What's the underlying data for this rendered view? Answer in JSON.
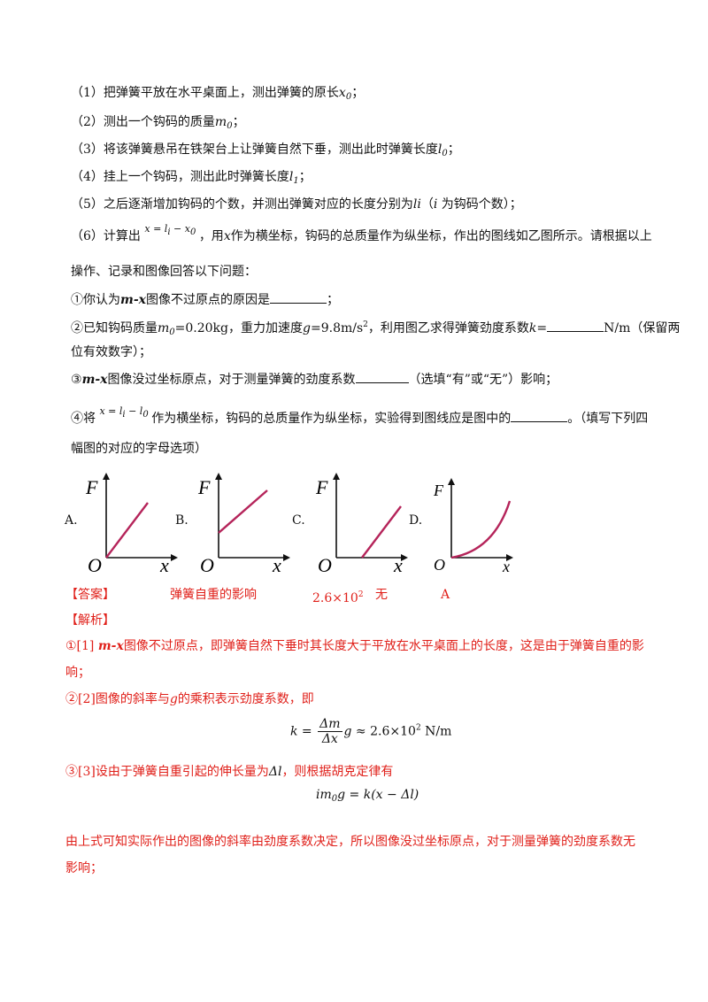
{
  "steps": [
    {
      "prefix": "（1）把弹簧平放在水平桌面上，测出弹簧的原长",
      "var": "x",
      "sub": "0",
      "suffix": "；"
    },
    {
      "prefix": "（2）测出一个钩码的质量",
      "var": "m",
      "sub": "0",
      "suffix": "；"
    },
    {
      "prefix": "（3）将该弹簧悬吊在铁架台上让弹簧自然下垂，测出此时弹簧长度",
      "var": "l",
      "sub": "0",
      "suffix": "；"
    },
    {
      "prefix": "（4）挂上一个钩码，测出此时弹簧长度",
      "var": "l",
      "sub": "1",
      "suffix": "；"
    },
    {
      "prefix": "（5）之后逐渐增加钩码的个数，并测出弹簧对应的长度分别为",
      "var": "li",
      "mid": "（",
      "var2": "i",
      "suffix": " 为钩码个数）；"
    }
  ],
  "step6": {
    "prefix": "（6）计算出",
    "formula": "x = l",
    "formula_sub": "i",
    "formula_tail": " − x",
    "formula_tail_sub": "0",
    "suffix_a": "，用",
    "var": "x",
    "suffix_b": "作为横坐标，钩码的总质量作为纵坐标，作出的图线如乙图所示。请根据以上",
    "line2": "操作、记录和图像回答以下问题："
  },
  "q1": {
    "prefix": "①你认为",
    "var": "m-x",
    "text": "图像不过原点的原因是",
    "suffix": "；"
  },
  "q2": {
    "prefix": "②已知钩码质量",
    "m0": "m",
    "m0_sub": "0",
    "val1": "=0.20kg，重力加速度",
    "g": "g",
    "val2": "=9.8m/s",
    "val2_sup": "2",
    "text": "，利用图乙求得弹簧劲度系数",
    "k": "k",
    "eq": "=",
    "unit": "N/m（保留两",
    "line2": "位有效数字）；"
  },
  "q3": {
    "var": "m-x",
    "prefix": "③",
    "text": "图像没过坐标原点，对于测量弹簧的劲度系数",
    "suffix": "（选填“有”或“无”）影响；"
  },
  "q4": {
    "prefix": "④将",
    "formula": "x = l",
    "formula_sub": "i",
    "formula_tail": " − l",
    "formula_tail_sub": "0",
    "text": "作为横坐标，钩码的总质量作为纵坐标，实验得到图线应是图中的",
    "suffix": "。（填写下列四",
    "line2": "幅图的对应的字母选项）"
  },
  "graphs": [
    {
      "letter": "A.",
      "y_label": "F",
      "x_label": "x",
      "origin": "O",
      "curve": "line-through-origin"
    },
    {
      "letter": "B.",
      "y_label": "F",
      "x_label": "x",
      "origin": "O",
      "curve": "line-positive-intercept"
    },
    {
      "letter": "C.",
      "y_label": "F",
      "x_label": "x",
      "origin": "O",
      "curve": "line-x-intercept"
    },
    {
      "letter": "D.",
      "y_label": "F",
      "x_label": "x",
      "origin": "O",
      "curve": "concave-up"
    }
  ],
  "answer": {
    "label": "【答案】",
    "a1": "弹簧自重的影响",
    "a2": "2.6×10",
    "a2_sup": "2",
    "a3": "无",
    "a4": "A"
  },
  "analysis": {
    "label": "【解析】",
    "p1_prefix": "①[1] ",
    "p1_var": "m-x",
    "p1_text": "图像不过原点，即弹簧自然下垂时其长度大于平放在水平桌面上的长度，这是由于弹簧自重的影",
    "p1_line2": "响；",
    "p2_prefix": "②[2]图像的斜率与",
    "p2_var": "g",
    "p2_text": "的乘积表示劲度系数，即",
    "eq1_k": "k",
    "eq1_eq": " = ",
    "eq1_num": "Δm",
    "eq1_den": "Δx",
    "eq1_g": "g",
    "eq1_tail": " ≈ 2.6×10",
    "eq1_sup": "2",
    "eq1_unit": " N/m",
    "p3_text": "③[3]设由于弹簧自重引起的伸长量为",
    "p3_sym": "Δl",
    "p3_suffix": "，则根据胡克定律有",
    "eq2": "im",
    "eq2_sub": "0",
    "eq2_tail": "g = k(x − Δl)",
    "p4": "由上式可知实际作出的图像的斜率由劲度系数决定，所以图像没过坐标原点，对于测量弹簧的劲度系数无",
    "p4_line2": "影响；"
  },
  "colors": {
    "answer": "#e0201a",
    "curve": "#b5245a",
    "text": "#111111"
  }
}
